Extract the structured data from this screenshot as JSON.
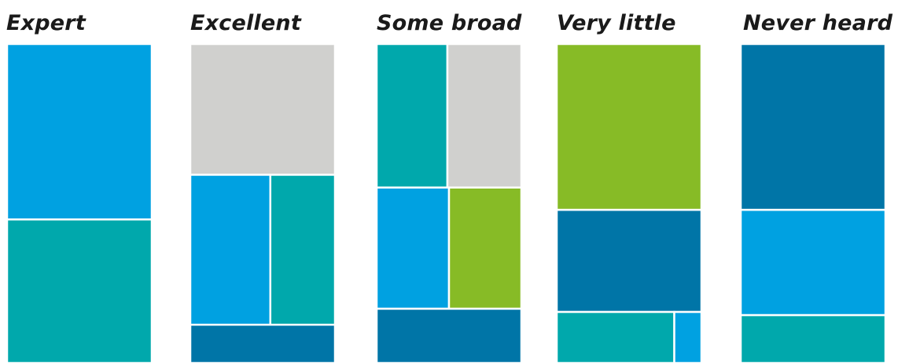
{
  "chart_data": {
    "type": "treemap",
    "colors": {
      "sky_blue": "#00A1E1",
      "teal": "#00A8AC",
      "grey": "#D0D0CE",
      "navy": "#0075A7",
      "green": "#87BB26"
    },
    "panels": [
      {
        "title": "Expert",
        "tiles": [
          {
            "color": "sky_blue",
            "value": 55
          },
          {
            "color": "teal",
            "value": 45
          }
        ]
      },
      {
        "title": "Excellent",
        "tiles": [
          {
            "color": "grey",
            "value": 41
          },
          {
            "color": "sky_blue",
            "value": 26
          },
          {
            "color": "teal",
            "value": 21
          },
          {
            "color": "navy",
            "value": 12
          }
        ]
      },
      {
        "title": "Some broad",
        "tiles": [
          {
            "color": "teal",
            "value": 22
          },
          {
            "color": "grey",
            "value": 23
          },
          {
            "color": "sky_blue",
            "value": 19
          },
          {
            "color": "green",
            "value": 19
          },
          {
            "color": "navy",
            "value": 17
          }
        ]
      },
      {
        "title": "Very little",
        "tiles": [
          {
            "color": "green",
            "value": 52
          },
          {
            "color": "navy",
            "value": 32
          },
          {
            "color": "teal",
            "value": 13
          },
          {
            "color": "sky_blue",
            "value": 3
          }
        ]
      },
      {
        "title": "Never heard",
        "tiles": [
          {
            "color": "navy",
            "value": 52
          },
          {
            "color": "sky_blue",
            "value": 33
          },
          {
            "color": "teal",
            "value": 15
          }
        ]
      }
    ]
  }
}
